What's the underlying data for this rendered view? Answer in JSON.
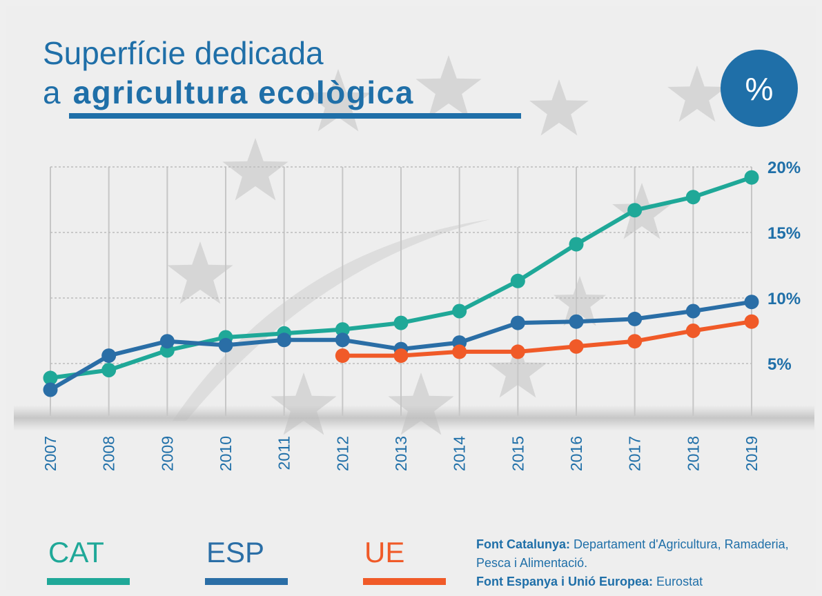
{
  "chart_data": {
    "type": "line",
    "title": {
      "line1": "Superfície dedicada",
      "prefix": "a",
      "emphasis": "agricultura ecològica"
    },
    "unit": "%",
    "categories": [
      "2007",
      "2008",
      "2009",
      "2010",
      "2011",
      "2012",
      "2013",
      "2014",
      "2015",
      "2016",
      "2017",
      "2018",
      "2019"
    ],
    "series": [
      {
        "name": "CAT",
        "color": "#1fa898",
        "values": [
          3.9,
          4.5,
          6.0,
          7.0,
          7.3,
          7.6,
          8.1,
          9.0,
          11.3,
          14.1,
          16.7,
          17.7,
          19.2
        ]
      },
      {
        "name": "ESP",
        "color": "#2a6ea6",
        "values": [
          3.0,
          5.6,
          6.7,
          6.4,
          6.8,
          6.8,
          6.1,
          6.6,
          8.1,
          8.2,
          8.4,
          9.0,
          9.7
        ]
      },
      {
        "name": "UE",
        "color": "#f05a28",
        "values": [
          null,
          null,
          null,
          null,
          null,
          5.6,
          5.6,
          5.9,
          5.9,
          6.3,
          6.7,
          7.5,
          8.2
        ]
      }
    ],
    "ylim": [
      1,
      20
    ],
    "yticks": [
      {
        "value": 5,
        "label": "5%"
      },
      {
        "value": 10,
        "label": "10%"
      },
      {
        "value": 15,
        "label": "15%"
      },
      {
        "value": 20,
        "label": "20%"
      }
    ],
    "grid": true,
    "sources": [
      {
        "label": "Font Catalunya:",
        "text": "Departament d'Agricultura, Ramaderia, Pesca i Alimentació."
      },
      {
        "label": "Font Espanya i Unió Europea:",
        "text": "Eurostat"
      }
    ]
  }
}
